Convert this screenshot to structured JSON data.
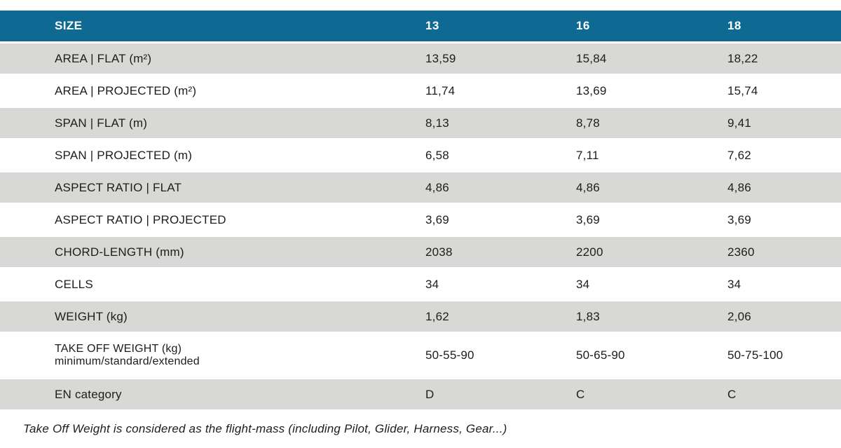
{
  "table": {
    "header": {
      "label": "SIZE",
      "columns": [
        "13",
        "16",
        "18"
      ]
    },
    "rows": [
      {
        "label": "AREA | FLAT (m²)",
        "values": [
          "13,59",
          "15,84",
          "18,22"
        ]
      },
      {
        "label": "AREA | PROJECTED (m²)",
        "values": [
          "11,74",
          "13,69",
          "15,74"
        ]
      },
      {
        "label": "SPAN | FLAT (m)",
        "values": [
          "8,13",
          "8,78",
          "9,41"
        ]
      },
      {
        "label": "SPAN | PROJECTED (m)",
        "values": [
          "6,58",
          "7,11",
          "7,62"
        ]
      },
      {
        "label": "ASPECT RATIO | FLAT",
        "values": [
          "4,86",
          "4,86",
          "4,86"
        ]
      },
      {
        "label": "ASPECT RATIO | PROJECTED",
        "values": [
          "3,69",
          "3,69",
          "3,69"
        ]
      },
      {
        "label": "CHORD-LENGTH (mm)",
        "values": [
          "2038",
          "2200",
          "2360"
        ]
      },
      {
        "label": "CELLS",
        "values": [
          "34",
          "34",
          "34"
        ]
      },
      {
        "label": "WEIGHT (kg)",
        "values": [
          "1,62",
          "1,83",
          "2,06"
        ]
      },
      {
        "label": "TAKE OFF WEIGHT (kg)",
        "label_line2": "minimum/standard/extended",
        "values": [
          "50-55-90",
          "50-65-90",
          "50-75-100"
        ]
      },
      {
        "label": "EN category",
        "values": [
          "D",
          "C",
          "C"
        ]
      }
    ]
  },
  "footnote": "Take Off Weight is considered as the flight-mass (including Pilot, Glider, Harness, Gear...)",
  "colors": {
    "header_bg": "#0e6a93",
    "header_text": "#ffffff",
    "row_alt_bg": "#d8d8d6",
    "row_plain_bg": "#ffffff",
    "body_text": "#1d1d1b"
  }
}
